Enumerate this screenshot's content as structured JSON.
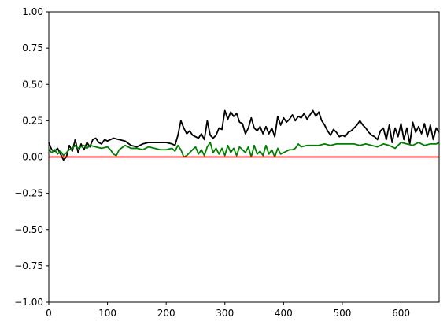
{
  "chart_data": {
    "type": "line",
    "title": "",
    "xlabel": "",
    "ylabel": "",
    "xlim": [
      0,
      665
    ],
    "ylim": [
      -1.0,
      1.0
    ],
    "grid": false,
    "x_ticks": [
      0,
      100,
      200,
      300,
      400,
      500,
      600
    ],
    "x_tick_labels": [
      "0",
      "100",
      "200",
      "300",
      "400",
      "500",
      "600"
    ],
    "y_ticks": [
      -1.0,
      -0.75,
      -0.5,
      -0.25,
      0.0,
      0.25,
      0.5,
      0.75,
      1.0
    ],
    "y_tick_labels": [
      "−1.00",
      "−0.75",
      "−0.50",
      "−0.25",
      "0.00",
      "0.25",
      "0.50",
      "0.75",
      "1.00"
    ],
    "series": [
      {
        "color": "#000000",
        "x": [
          0,
          5,
          10,
          15,
          20,
          25,
          30,
          35,
          40,
          45,
          50,
          55,
          60,
          65,
          70,
          75,
          80,
          85,
          90,
          95,
          100,
          110,
          120,
          130,
          140,
          150,
          160,
          170,
          180,
          190,
          200,
          210,
          215,
          220,
          225,
          230,
          235,
          240,
          245,
          250,
          255,
          260,
          265,
          270,
          275,
          280,
          285,
          290,
          295,
          300,
          305,
          310,
          315,
          320,
          325,
          330,
          335,
          340,
          345,
          350,
          355,
          360,
          365,
          370,
          375,
          380,
          385,
          390,
          395,
          400,
          405,
          410,
          415,
          420,
          425,
          430,
          435,
          440,
          445,
          450,
          455,
          460,
          465,
          470,
          475,
          480,
          485,
          490,
          495,
          500,
          505,
          510,
          515,
          520,
          525,
          530,
          535,
          540,
          545,
          550,
          555,
          560,
          565,
          570,
          575,
          580,
          585,
          590,
          595,
          600,
          605,
          610,
          615,
          620,
          625,
          630,
          635,
          640,
          645,
          650,
          655,
          660,
          665
        ],
        "y": [
          0.1,
          0.05,
          0.04,
          0.06,
          0.02,
          -0.02,
          0.0,
          0.08,
          0.04,
          0.12,
          0.03,
          0.09,
          0.05,
          0.1,
          0.07,
          0.12,
          0.13,
          0.1,
          0.09,
          0.12,
          0.11,
          0.13,
          0.12,
          0.11,
          0.08,
          0.07,
          0.09,
          0.1,
          0.1,
          0.1,
          0.1,
          0.09,
          0.08,
          0.15,
          0.25,
          0.2,
          0.16,
          0.18,
          0.15,
          0.14,
          0.13,
          0.16,
          0.12,
          0.25,
          0.15,
          0.13,
          0.15,
          0.2,
          0.19,
          0.32,
          0.26,
          0.31,
          0.28,
          0.3,
          0.24,
          0.23,
          0.16,
          0.2,
          0.27,
          0.2,
          0.18,
          0.21,
          0.16,
          0.21,
          0.16,
          0.2,
          0.14,
          0.28,
          0.22,
          0.27,
          0.24,
          0.26,
          0.29,
          0.25,
          0.28,
          0.27,
          0.3,
          0.26,
          0.29,
          0.32,
          0.28,
          0.31,
          0.25,
          0.22,
          0.18,
          0.15,
          0.19,
          0.17,
          0.14,
          0.15,
          0.14,
          0.17,
          0.18,
          0.2,
          0.22,
          0.25,
          0.22,
          0.2,
          0.17,
          0.15,
          0.14,
          0.12,
          0.18,
          0.2,
          0.12,
          0.22,
          0.1,
          0.2,
          0.14,
          0.23,
          0.12,
          0.2,
          0.09,
          0.24,
          0.17,
          0.21,
          0.16,
          0.23,
          0.14,
          0.22,
          0.12,
          0.2,
          0.17
        ]
      },
      {
        "color": "#008000",
        "x": [
          0,
          5,
          10,
          15,
          20,
          25,
          30,
          35,
          40,
          45,
          50,
          55,
          60,
          65,
          70,
          80,
          90,
          100,
          105,
          110,
          115,
          120,
          130,
          140,
          150,
          160,
          170,
          180,
          190,
          200,
          210,
          215,
          220,
          225,
          230,
          235,
          240,
          245,
          250,
          255,
          260,
          265,
          270,
          275,
          280,
          285,
          290,
          295,
          300,
          305,
          310,
          315,
          320,
          325,
          330,
          335,
          340,
          345,
          350,
          355,
          360,
          365,
          370,
          375,
          380,
          385,
          390,
          395,
          400,
          405,
          410,
          415,
          420,
          425,
          430,
          440,
          450,
          460,
          470,
          480,
          490,
          500,
          510,
          520,
          530,
          540,
          550,
          560,
          570,
          580,
          590,
          600,
          610,
          620,
          630,
          640,
          650,
          660,
          665
        ],
        "y": [
          0.05,
          0.03,
          0.05,
          0.02,
          0.04,
          0.01,
          0.03,
          0.05,
          0.06,
          0.08,
          0.06,
          0.07,
          0.08,
          0.06,
          0.08,
          0.07,
          0.06,
          0.07,
          0.05,
          0.02,
          0.01,
          0.05,
          0.08,
          0.06,
          0.06,
          0.05,
          0.07,
          0.06,
          0.05,
          0.05,
          0.06,
          0.04,
          0.08,
          0.05,
          0.0,
          0.01,
          0.03,
          0.05,
          0.07,
          0.02,
          0.05,
          0.01,
          0.07,
          0.1,
          0.03,
          0.06,
          0.02,
          0.06,
          0.01,
          0.08,
          0.03,
          0.06,
          0.01,
          0.07,
          0.05,
          0.03,
          0.07,
          0.0,
          0.08,
          0.02,
          0.04,
          0.01,
          0.08,
          0.02,
          0.05,
          0.0,
          0.06,
          0.02,
          0.03,
          0.04,
          0.05,
          0.05,
          0.06,
          0.09,
          0.07,
          0.08,
          0.08,
          0.08,
          0.09,
          0.08,
          0.09,
          0.09,
          0.09,
          0.09,
          0.08,
          0.09,
          0.08,
          0.07,
          0.09,
          0.08,
          0.06,
          0.1,
          0.09,
          0.08,
          0.1,
          0.08,
          0.09,
          0.09,
          0.1
        ]
      },
      {
        "color": "#ff0000",
        "x": [
          0,
          665
        ],
        "y": [
          0.0,
          0.0
        ]
      }
    ]
  }
}
